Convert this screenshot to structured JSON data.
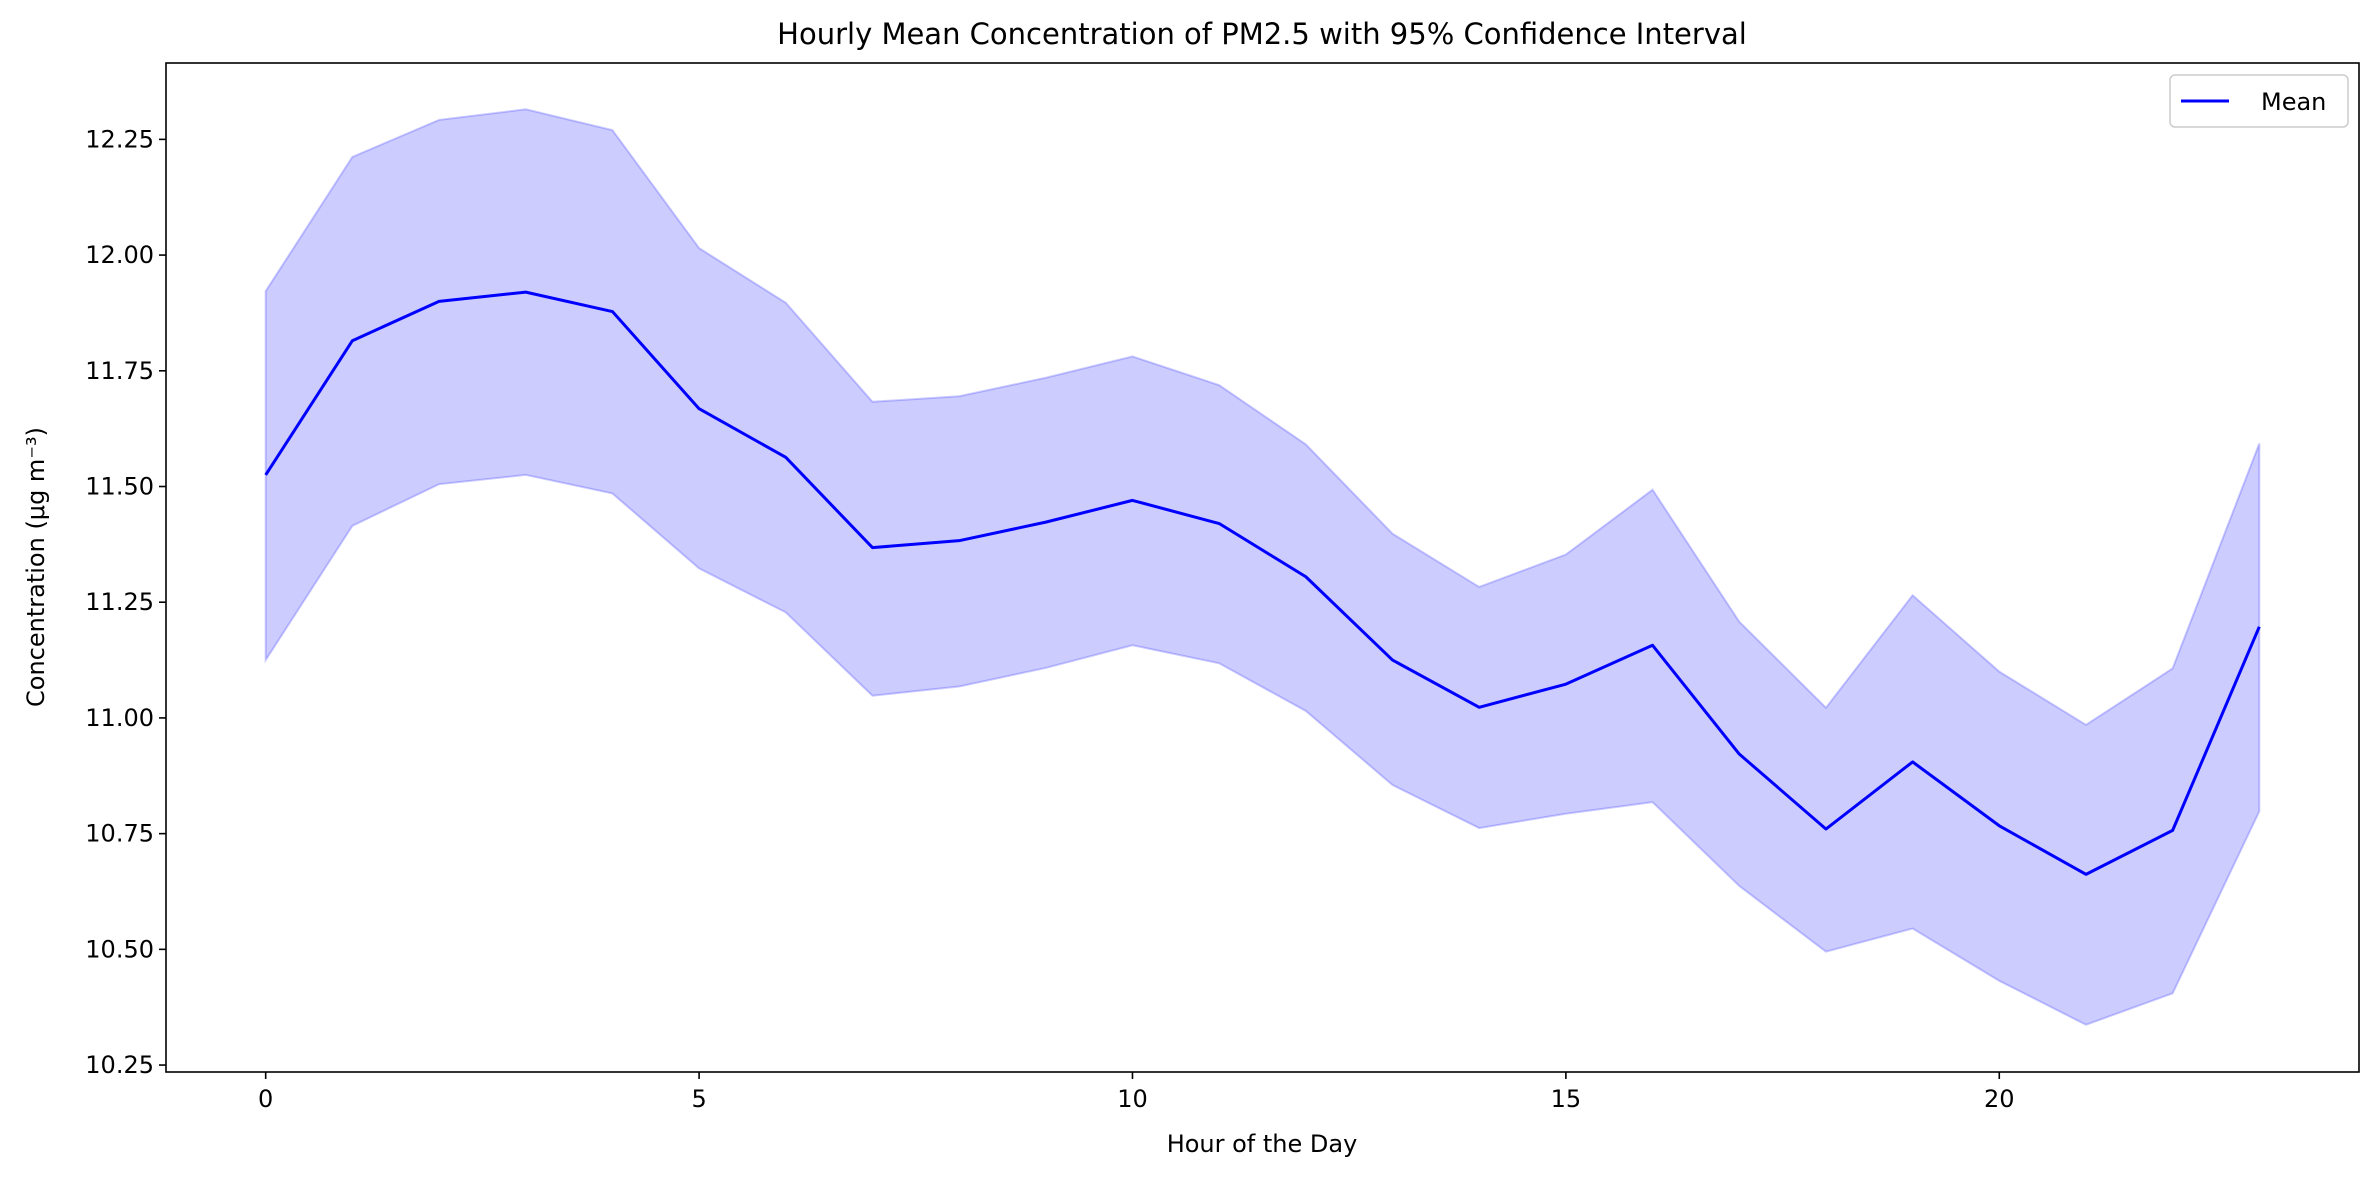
{
  "chart_data": {
    "type": "line",
    "title": "Hourly Mean Concentration of PM2.5 with 95% Confidence Interval",
    "xlabel": "Hour of the Day",
    "ylabel": "Concentration (μg m⁻³)",
    "xlim": [
      -1.15,
      24.15
    ],
    "ylim": [
      10.235,
      12.415
    ],
    "xticks": [
      0,
      5,
      10,
      15,
      20
    ],
    "yticks": [
      10.25,
      10.5,
      10.75,
      11.0,
      11.25,
      11.5,
      11.75,
      12.0,
      12.25
    ],
    "xtick_labels": [
      "0",
      "5",
      "10",
      "15",
      "20"
    ],
    "ytick_labels": [
      "10.25",
      "10.50",
      "10.75",
      "11.00",
      "11.25",
      "11.50",
      "11.75",
      "12.00",
      "12.25"
    ],
    "grid": false,
    "legend": {
      "position": "top-right",
      "entries": [
        "Mean"
      ]
    },
    "series": [
      {
        "name": "Mean",
        "color": "#0000ff",
        "x": [
          0,
          1,
          2,
          3,
          4,
          5,
          6,
          7,
          8,
          9,
          10,
          11,
          12,
          13,
          14,
          15,
          16,
          17,
          18,
          19,
          20,
          21,
          22,
          23
        ],
        "y": [
          11.525,
          11.815,
          11.9,
          11.92,
          11.878,
          11.668,
          11.563,
          11.368,
          11.383,
          11.423,
          11.47,
          11.42,
          11.305,
          11.125,
          11.023,
          11.073,
          11.157,
          10.922,
          10.76,
          10.905,
          10.767,
          10.662,
          10.757,
          11.197
        ]
      }
    ],
    "confidence_band": {
      "label": "95% Confidence Interval",
      "color": "#0000ff",
      "x": [
        0,
        1,
        2,
        3,
        4,
        5,
        6,
        7,
        8,
        9,
        10,
        11,
        12,
        13,
        14,
        15,
        16,
        17,
        18,
        19,
        20,
        21,
        22,
        23
      ],
      "lower": [
        11.125,
        11.415,
        11.505,
        11.525,
        11.485,
        11.323,
        11.228,
        11.048,
        11.068,
        11.108,
        11.157,
        11.118,
        11.015,
        10.855,
        10.762,
        10.793,
        10.818,
        10.637,
        10.495,
        10.545,
        10.432,
        10.337,
        10.405,
        10.798
      ],
      "upper": [
        11.922,
        12.212,
        12.292,
        12.315,
        12.27,
        12.015,
        11.897,
        11.683,
        11.695,
        11.735,
        11.781,
        11.719,
        11.591,
        11.398,
        11.283,
        11.353,
        11.493,
        11.208,
        11.022,
        11.265,
        11.1,
        10.985,
        11.107,
        11.593
      ]
    }
  }
}
